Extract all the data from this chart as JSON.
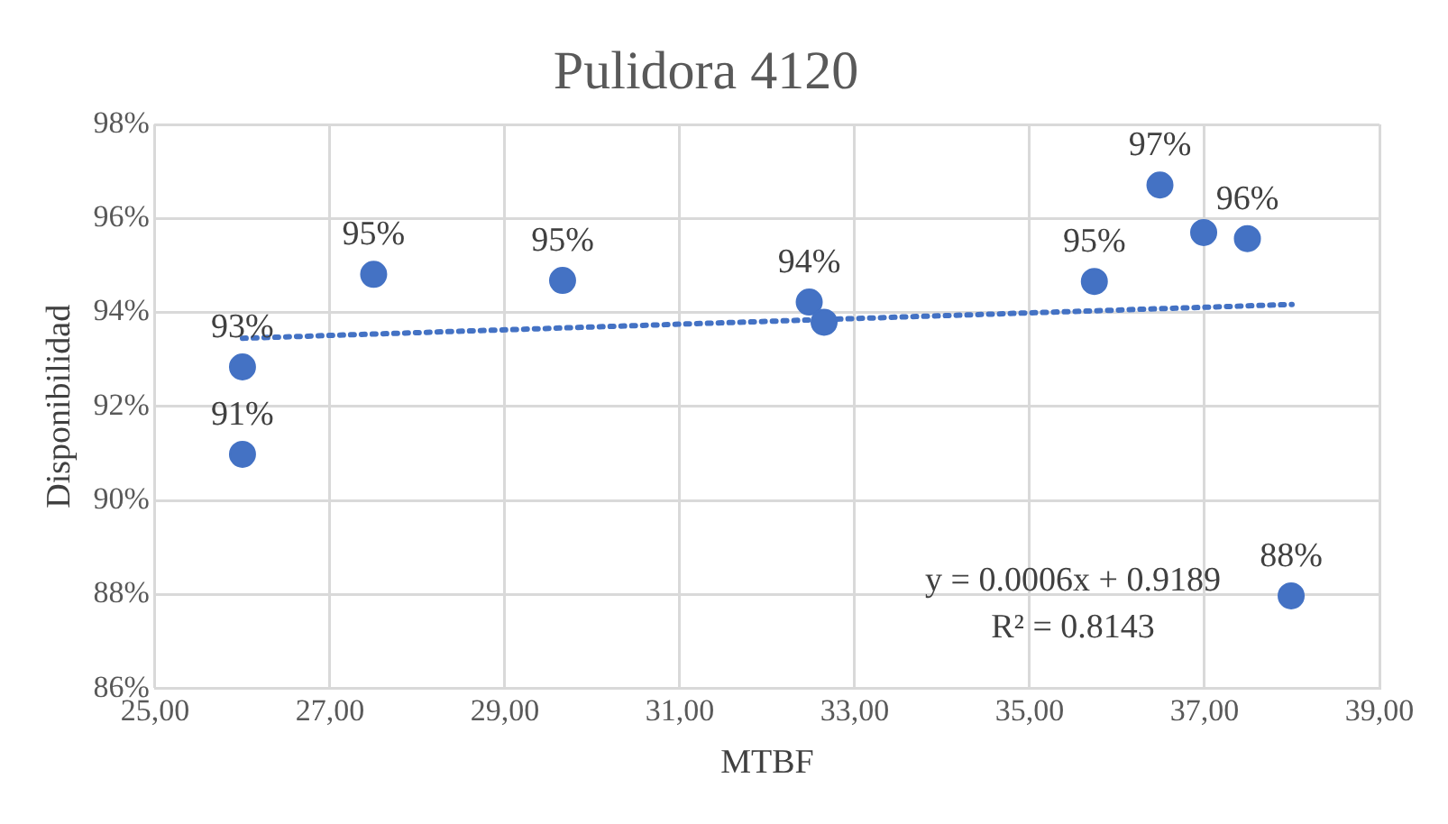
{
  "chart_data": {
    "type": "scatter",
    "title": "Pulidora 4120",
    "xlabel": "MTBF",
    "ylabel": "Disponibilidad",
    "annotations": [
      "y = 0.0006x + 0.9189",
      "R² = 0.8143"
    ],
    "series": [
      {
        "color": "#4472c4",
        "marker": "circle",
        "x": [
          26.0,
          26.0,
          27.5,
          29.66,
          32.48,
          32.65,
          35.74,
          36.49,
          36.99,
          37.49,
          37.99
        ],
        "values": [
          92.84,
          90.98,
          94.81,
          94.68,
          94.22,
          93.79,
          94.66,
          96.71,
          95.7,
          95.57,
          87.97
        ],
        "value_labels": [
          "93%",
          "91%",
          "95%",
          "95%",
          "94%",
          null,
          "95%",
          "97%",
          null,
          "96%",
          "88%"
        ]
      },
      {
        "type": "line",
        "color": "#4472c4",
        "marker": "none",
        "line_style": "dotted",
        "x": [
          26,
          38
        ],
        "values": [
          93.45,
          94.17
        ]
      }
    ],
    "xlim": [
      25,
      39
    ],
    "xticks": [
      {
        "value": 25,
        "label": "25,00"
      },
      {
        "value": 27,
        "label": "27,00"
      },
      {
        "value": 29,
        "label": "29,00"
      },
      {
        "value": 31,
        "label": "31,00"
      },
      {
        "value": 33,
        "label": "33,00"
      },
      {
        "value": 35,
        "label": "35,00"
      },
      {
        "value": 37,
        "label": "37,00"
      },
      {
        "value": 39,
        "label": "39,00"
      }
    ],
    "ylim": [
      86,
      98
    ],
    "yticks": [
      {
        "value": 86,
        "label": "86%"
      },
      {
        "value": 88,
        "label": "88%"
      },
      {
        "value": 90,
        "label": "90%"
      },
      {
        "value": 92,
        "label": "92%"
      },
      {
        "value": 94,
        "label": "94%"
      },
      {
        "value": 96,
        "label": "96%"
      },
      {
        "value": 98,
        "label": "98%"
      }
    ],
    "grid": true,
    "legend": false
  }
}
